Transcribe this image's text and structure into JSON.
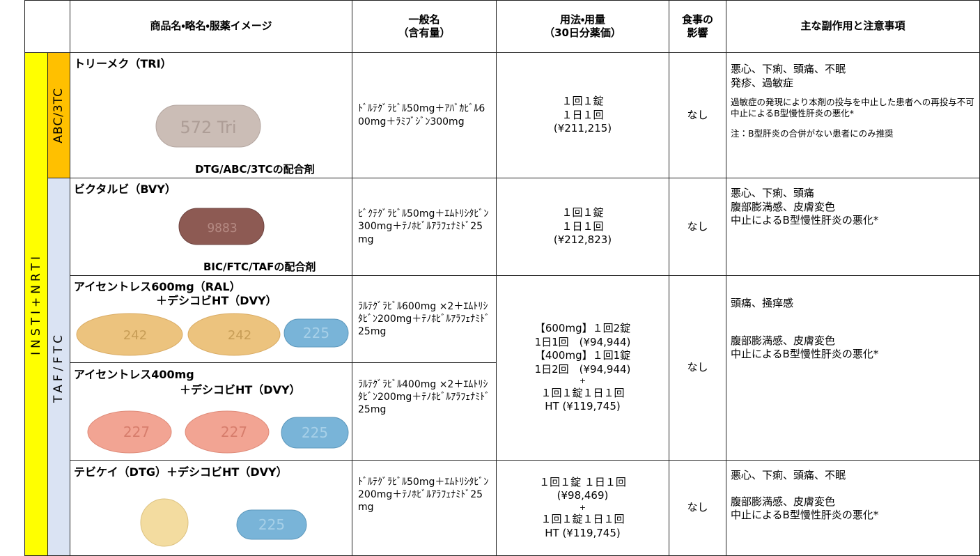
{
  "header": {
    "product": "商品名・略名・服薬イメージ",
    "generic": [
      "一般名",
      "（含有量）"
    ],
    "dosage": [
      "用法・用量",
      "（30日分薬価）"
    ],
    "food": [
      "食事の",
      "影響"
    ],
    "side_effects": "主な副作用と注意事項"
  },
  "class_label": "INSTI+NRTI",
  "groups": [
    "ABC/3TC",
    "TAF/FTC"
  ],
  "rows": [
    {
      "name": "トリーメク（TRI）",
      "caption": "DTG/ABC/3TCの配合剤",
      "pills": [
        "572 Tri"
      ],
      "generic": "ﾄﾞﾙﾃｸﾞﾗﾋﾞﾙ50mg＋ｱﾊﾞｶﾋﾞﾙ600mg＋ﾗﾐﾌﾞｼﾞﾝ300mg",
      "dosage": [
        "１回１錠",
        "１日１回",
        "(¥211,215)"
      ],
      "food": "なし",
      "side_effects": [
        "悪心、下痢、頭痛、不眠",
        "発疹、過敏症"
      ],
      "notes": [
        "過敏症の発現により本剤の投与を中止した患者への再投与不可",
        "中止によるB型慢性肝炎の悪化*"
      ],
      "footnote": "注：B型肝炎の合併がない患者にのみ推奨"
    },
    {
      "name": "ビクタルビ（BVY）",
      "caption": "BIC/FTC/TAFの配合剤",
      "pills": [
        "9883"
      ],
      "generic": "ﾋﾞｸﾃｸﾞﾗﾋﾞﾙ50mg＋ｴﾑﾄﾘｼﾀﾋﾞﾝ300mg＋ﾃﾉﾎﾋﾞﾙｱﾗﾌｪﾅﾐﾄﾞ25mg",
      "dosage": [
        "１回１錠",
        "１日１回",
        "(¥212,823)"
      ],
      "food": "なし",
      "side_effects": [
        "悪心、下痢、頭痛",
        "腹部膨満感、皮膚変色",
        "中止によるB型慢性肝炎の悪化*"
      ]
    },
    {
      "name": [
        "アイセントレス600mg（RAL）",
        "＋デシコビHT（DVY）"
      ],
      "pills": [
        "242",
        "242",
        "225"
      ],
      "generic": "ﾗﾙﾃｸﾞﾗﾋﾞﾙ600mg ×2＋ｴﾑﾄﾘｼﾀﾋﾞﾝ200mg＋ﾃﾉﾎﾋﾞﾙｱﾗﾌｪﾅﾐﾄﾞ25mg"
    },
    {
      "name": [
        "アイセントレス400mg",
        "＋デシコビHT（DVY）"
      ],
      "pills": [
        "227",
        "227",
        "225"
      ],
      "generic": "ﾗﾙﾃｸﾞﾗﾋﾞﾙ400mg ×2＋ｴﾑﾄﾘｼﾀﾋﾞﾝ200mg＋ﾃﾉﾎﾋﾞﾙｱﾗﾌｪﾅﾐﾄﾞ25mg"
    },
    {
      "name": "テビケイ（DTG）＋デシコビHT（DVY）",
      "pills": [
        "225"
      ],
      "generic": "ﾄﾞﾙﾃｸﾞﾗﾋﾞﾙ50mg＋ｴﾑﾄﾘｼﾀﾋﾞﾝ200mg＋ﾃﾉﾎﾋﾞﾙｱﾗﾌｪﾅﾐﾄﾞ25mg",
      "dosage": [
        "１回１錠 １日１回",
        "(¥98,469)",
        "+",
        "１回１錠１日１回",
        "HT (¥119,745)"
      ],
      "food": "なし",
      "side_effects": [
        "悪心、下痢、頭痛、不眠"
      ],
      "side_effects_2": [
        "腹部膨満感、皮膚変色",
        "中止によるB型慢性肝炎の悪化*"
      ]
    }
  ],
  "ral_shared": {
    "dosage": [
      "【600mg】１回2錠",
      "1日1回　(¥94,944)",
      "【400mg】１回1錠",
      "1日2回　(¥94,944)",
      "+",
      "１回１錠１日１回",
      "HT (¥119,745)"
    ],
    "food": "なし",
    "side_effects": [
      "頭痛、掻痒感"
    ],
    "side_effects_2": [
      "腹部膨満感、皮膚変色",
      "中止によるB型慢性肝炎の悪化*"
    ]
  }
}
